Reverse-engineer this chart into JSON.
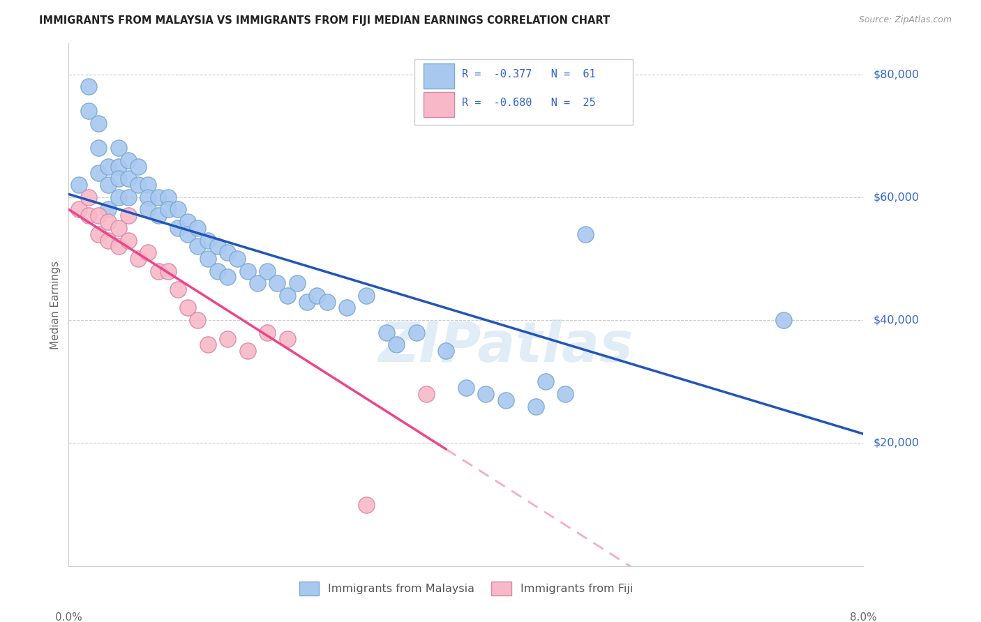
{
  "title": "IMMIGRANTS FROM MALAYSIA VS IMMIGRANTS FROM FIJI MEDIAN EARNINGS CORRELATION CHART",
  "source": "Source: ZipAtlas.com",
  "ylabel": "Median Earnings",
  "watermark": "ZIPatlas",
  "malaysia": {
    "color": "#a8c8f0",
    "border_color": "#7aaad0",
    "R": -0.377,
    "N": 61,
    "label": "Immigrants from Malaysia",
    "line_color": "#2255bb",
    "x": [
      0.001,
      0.002,
      0.002,
      0.003,
      0.003,
      0.003,
      0.004,
      0.004,
      0.004,
      0.005,
      0.005,
      0.005,
      0.005,
      0.006,
      0.006,
      0.006,
      0.007,
      0.007,
      0.008,
      0.008,
      0.008,
      0.009,
      0.009,
      0.01,
      0.01,
      0.011,
      0.011,
      0.012,
      0.012,
      0.013,
      0.013,
      0.014,
      0.014,
      0.015,
      0.015,
      0.016,
      0.016,
      0.017,
      0.018,
      0.019,
      0.02,
      0.021,
      0.022,
      0.023,
      0.024,
      0.025,
      0.026,
      0.028,
      0.03,
      0.032,
      0.033,
      0.035,
      0.038,
      0.04,
      0.042,
      0.044,
      0.047,
      0.048,
      0.05,
      0.052,
      0.072
    ],
    "y": [
      62000,
      78000,
      74000,
      72000,
      68000,
      64000,
      65000,
      62000,
      58000,
      68000,
      65000,
      63000,
      60000,
      66000,
      63000,
      60000,
      65000,
      62000,
      62000,
      60000,
      58000,
      60000,
      57000,
      60000,
      58000,
      58000,
      55000,
      56000,
      54000,
      55000,
      52000,
      53000,
      50000,
      52000,
      48000,
      51000,
      47000,
      50000,
      48000,
      46000,
      48000,
      46000,
      44000,
      46000,
      43000,
      44000,
      43000,
      42000,
      44000,
      38000,
      36000,
      38000,
      35000,
      29000,
      28000,
      27000,
      26000,
      30000,
      28000,
      54000,
      40000
    ]
  },
  "fiji": {
    "color": "#f8b8c8",
    "border_color": "#d888a8",
    "R": -0.68,
    "N": 25,
    "label": "Immigrants from Fiji",
    "line_color": "#ee4488",
    "x": [
      0.001,
      0.002,
      0.002,
      0.003,
      0.003,
      0.004,
      0.004,
      0.005,
      0.005,
      0.006,
      0.006,
      0.007,
      0.008,
      0.009,
      0.01,
      0.011,
      0.012,
      0.013,
      0.014,
      0.016,
      0.018,
      0.02,
      0.022,
      0.03,
      0.036
    ],
    "y": [
      58000,
      60000,
      57000,
      57000,
      54000,
      56000,
      53000,
      55000,
      52000,
      57000,
      53000,
      50000,
      51000,
      48000,
      48000,
      45000,
      42000,
      40000,
      36000,
      37000,
      35000,
      38000,
      37000,
      10000,
      28000
    ]
  },
  "xmin": 0.0,
  "xmax": 0.08,
  "ymin": 0,
  "ymax": 85000,
  "yticks": [
    20000,
    40000,
    60000,
    80000
  ],
  "xticks": [
    0.0,
    0.01,
    0.02,
    0.03,
    0.04,
    0.05,
    0.06,
    0.07,
    0.08
  ],
  "background_color": "#ffffff",
  "grid_color": "#cccccc",
  "title_color": "#222222",
  "right_label_color": "#3366cc",
  "source_color": "#999999",
  "legend_text_color": "#3366cc",
  "legend_R_label_1": "R =  -0.377   N =  61",
  "legend_R_label_2": "R =  -0.680   N =  25"
}
